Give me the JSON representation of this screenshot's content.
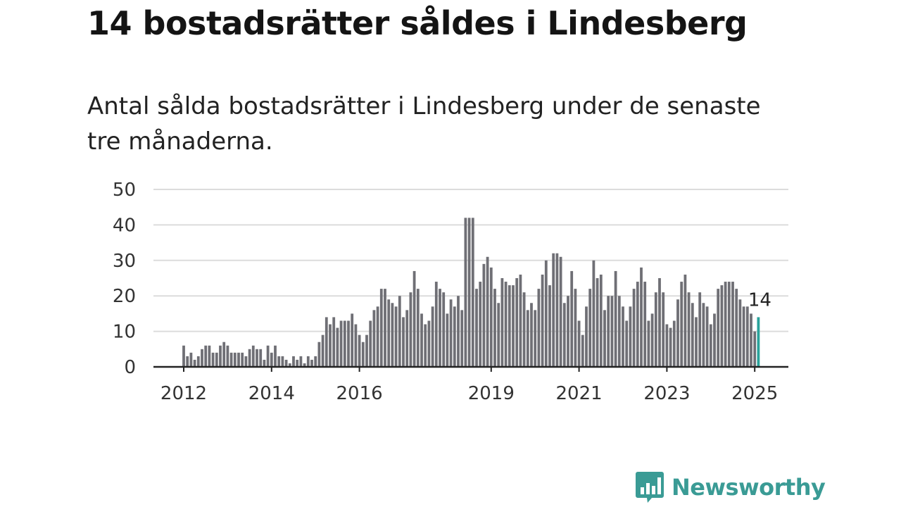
{
  "title": "14 bostadsrätter såldes i Lindesberg",
  "subtitle": "Antal sålda bostadsrätter i Lindesberg under de senaste tre månaderna.",
  "brand": {
    "name": "Newsworthy",
    "color": "#3a9b95",
    "icon": "bar-chart-speech-bubble-icon"
  },
  "chart_data": {
    "type": "bar",
    "x_start": "2012-01",
    "y_ticks": [
      0,
      10,
      20,
      30,
      40,
      50
    ],
    "ylim": [
      0,
      50
    ],
    "x_ticks": [
      "2012",
      "2014",
      "2016",
      "2019",
      "2021",
      "2023",
      "2025"
    ],
    "grid": true,
    "bar_color": "#6f6f75",
    "highlight_color": "#2aa39b",
    "highlight_label": "14",
    "values": [
      6,
      3,
      4,
      2,
      3,
      5,
      6,
      6,
      4,
      4,
      6,
      7,
      6,
      4,
      4,
      4,
      4,
      3,
      5,
      6,
      5,
      5,
      2,
      6,
      4,
      6,
      3,
      3,
      2,
      1,
      3,
      2,
      3,
      1,
      3,
      2,
      3,
      7,
      9,
      14,
      12,
      14,
      11,
      13,
      13,
      13,
      15,
      12,
      9,
      7,
      9,
      13,
      16,
      17,
      22,
      22,
      19,
      18,
      17,
      20,
      14,
      16,
      21,
      27,
      22,
      15,
      12,
      13,
      17,
      24,
      22,
      21,
      15,
      19,
      17,
      20,
      16,
      42,
      42,
      42,
      22,
      24,
      29,
      31,
      28,
      22,
      18,
      25,
      24,
      23,
      23,
      25,
      26,
      21,
      16,
      18,
      16,
      22,
      26,
      30,
      23,
      32,
      32,
      31,
      18,
      20,
      27,
      22,
      13,
      9,
      17,
      22,
      30,
      25,
      26,
      16,
      20,
      20,
      27,
      20,
      17,
      13,
      17,
      22,
      24,
      28,
      24,
      13,
      15,
      21,
      25,
      21,
      12,
      11,
      13,
      19,
      24,
      26,
      21,
      18,
      14,
      21,
      18,
      17,
      12,
      15,
      22,
      23,
      24,
      24,
      24,
      22,
      19,
      17,
      17,
      15,
      10,
      14
    ]
  }
}
